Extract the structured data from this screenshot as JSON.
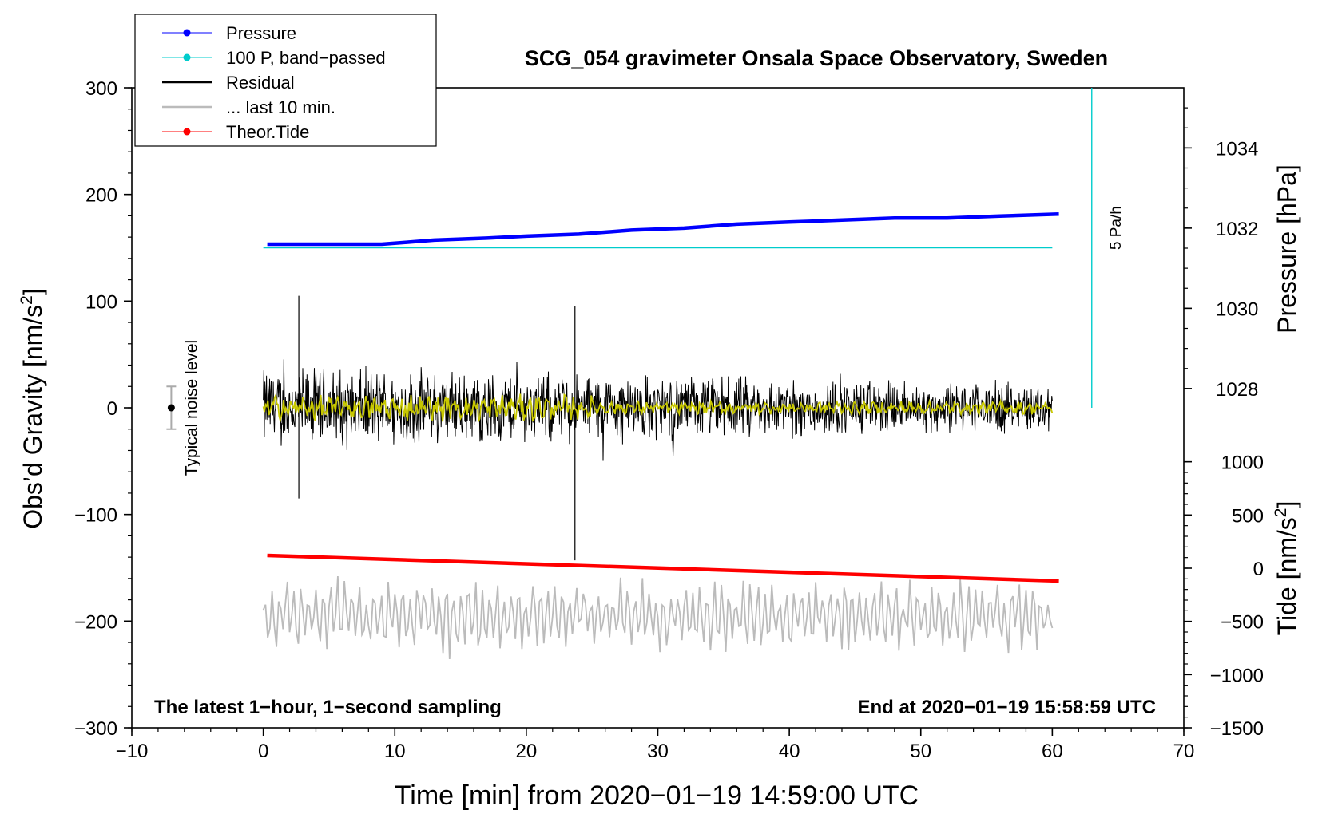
{
  "chart_data": {
    "type": "line",
    "title": "SCG_054 gravimeter Onsala Space Observatory, Sweden",
    "xlabel": "Time [min] from 2020−01−19 14:59:00 UTC",
    "ylabel_main": "Obs’d Gravity [nm/s",
    "ylabel_main_sup": "2",
    "ylabel_main_end": "]",
    "ylabel_pressure": "Pressure [hPa]",
    "ylabel_tide": "Tide [nm/s",
    "ylabel_tide_sup": "2",
    "ylabel_tide_end": "]",
    "xlim": [
      -10,
      70
    ],
    "ylim": [
      -300,
      300
    ],
    "pressure_ylim": [
      1027.5,
      1035.5
    ],
    "tide_ylim": [
      -1500,
      1500
    ],
    "x_ticks": [
      {
        "v": -10,
        "label": "−10"
      },
      {
        "v": 0,
        "label": "0"
      },
      {
        "v": 10,
        "label": "10"
      },
      {
        "v": 20,
        "label": "20"
      },
      {
        "v": 30,
        "label": "30"
      },
      {
        "v": 40,
        "label": "40"
      },
      {
        "v": 50,
        "label": "50"
      },
      {
        "v": 60,
        "label": "60"
      },
      {
        "v": 70,
        "label": "70"
      }
    ],
    "y_ticks": [
      {
        "v": 300,
        "label": "300"
      },
      {
        "v": 200,
        "label": "200"
      },
      {
        "v": 100,
        "label": "100"
      },
      {
        "v": 0,
        "label": "0"
      },
      {
        "v": -100,
        "label": "−100"
      },
      {
        "v": -200,
        "label": "−200"
      },
      {
        "v": -300,
        "label": "−300"
      }
    ],
    "pressure_ticks": [
      {
        "v": 1034,
        "label": "1034"
      },
      {
        "v": 1032,
        "label": "1032"
      },
      {
        "v": 1030,
        "label": "1030"
      },
      {
        "v": 1028,
        "label": "1028"
      }
    ],
    "tide_ticks": [
      {
        "v": 1000,
        "label": "1000"
      },
      {
        "v": 500,
        "label": "500"
      },
      {
        "v": 0,
        "label": "0"
      },
      {
        "v": -500,
        "label": "−500"
      },
      {
        "v": -1000,
        "label": "−1000"
      },
      {
        "v": -1500,
        "label": "−1500"
      }
    ],
    "series": [
      {
        "name": "Pressure",
        "color": "#0000ff",
        "axis": "pressure",
        "x": [
          0.3,
          3,
          6,
          9,
          11,
          13,
          17,
          20,
          24,
          28,
          32,
          36,
          40,
          44,
          48,
          52,
          56,
          60.5
        ],
        "values": [
          1031.6,
          1031.6,
          1031.6,
          1031.6,
          1031.65,
          1031.7,
          1031.75,
          1031.8,
          1031.85,
          1031.95,
          1032.0,
          1032.1,
          1032.15,
          1032.2,
          1032.25,
          1032.25,
          1032.3,
          1032.35
        ]
      },
      {
        "name": "100 P, band−passed",
        "color": "#00cccc",
        "axis": "gravity",
        "x": [
          0,
          60
        ],
        "values": [
          150,
          150
        ]
      },
      {
        "name": "Residual",
        "color": "#000000",
        "axis": "gravity",
        "x": [
          0,
          60
        ],
        "noise_amplitude": [
          35,
          20
        ],
        "spikes": [
          {
            "x": 2.7,
            "values": [
              105,
              -85
            ]
          },
          {
            "x": 23.7,
            "values": [
              95,
              -143
            ]
          }
        ]
      },
      {
        "name": "... last 10 min.",
        "color": "#bbbbbb",
        "axis": "gravity",
        "x": [
          0,
          60
        ],
        "center": -195,
        "amplitude": 25
      },
      {
        "name": "Theor.Tide",
        "color": "#ff0000",
        "axis": "tide",
        "x": [
          0.3,
          60.5
        ],
        "values": [
          120,
          -120
        ]
      },
      {
        "name": "Filtered residual",
        "color": "#c8c800",
        "axis": "gravity",
        "legend": false,
        "x": [
          0,
          60
        ],
        "amplitude": 6
      }
    ],
    "scale_bar": {
      "label": "5 Pa/h",
      "x": 63,
      "top": 300,
      "bottom": 0
    },
    "noise_marker": {
      "label": "Typical noise level",
      "x": -7,
      "value": 0,
      "error": 20
    },
    "annotations": {
      "bottom_left": "The latest 1−hour, 1−second sampling",
      "bottom_right": "End at 2020−01−19 15:58:59 UTC"
    },
    "legend": {
      "position": "top-left"
    }
  }
}
